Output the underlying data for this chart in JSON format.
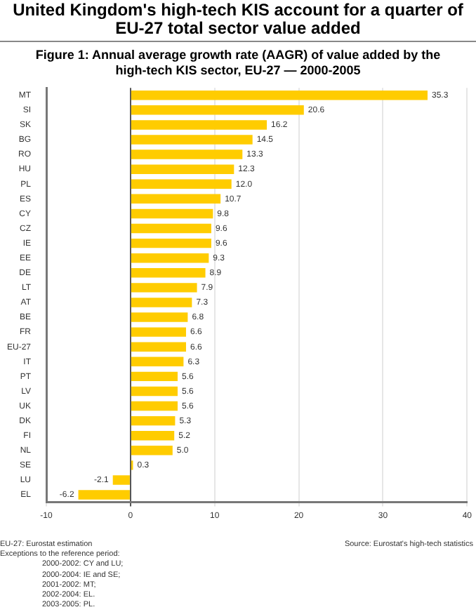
{
  "chart_data": {
    "type": "bar",
    "orientation": "horizontal",
    "title": "United Kingdom's high-tech KIS account for a quarter of EU-27 total sector value added",
    "subtitle": "Figure 1: Annual average growth rate (AAGR) of value added by the high-tech KIS sector, EU-27 — 2000-2005",
    "categories": [
      "MT",
      "SI",
      "SK",
      "BG",
      "RO",
      "HU",
      "PL",
      "ES",
      "CY",
      "CZ",
      "IE",
      "EE",
      "DE",
      "LT",
      "AT",
      "BE",
      "FR",
      "EU-27",
      "IT",
      "PT",
      "LV",
      "UK",
      "DK",
      "FI",
      "NL",
      "SE",
      "LU",
      "EL"
    ],
    "values": [
      35.3,
      20.6,
      16.2,
      14.5,
      13.3,
      12.3,
      12.0,
      10.7,
      9.8,
      9.6,
      9.6,
      9.3,
      8.9,
      7.9,
      7.3,
      6.8,
      6.6,
      6.6,
      6.3,
      5.6,
      5.6,
      5.6,
      5.3,
      5.2,
      5.0,
      0.3,
      -2.1,
      -6.2
    ],
    "value_labels": [
      "35.3",
      "20.6",
      "16.2",
      "14.5",
      "13.3",
      "12.3",
      "12.0",
      "10.7",
      "9.8",
      "9.6",
      "9.6",
      "9.3",
      "8.9",
      "7.9",
      "7.3",
      "6.8",
      "6.6",
      "6.6",
      "6.3",
      "5.6",
      "5.6",
      "5.6",
      "5.3",
      "5.2",
      "5.0",
      "0.3",
      "-2.1",
      "-6.2"
    ],
    "color": "#ffcc00",
    "xlim": [
      -10,
      40
    ],
    "xticks": [
      -10,
      0,
      10,
      20,
      30,
      40
    ],
    "grid": "x",
    "legend": false,
    "annotations": [
      "EU-27: Eurostat estimation",
      "Exceptions to the reference period:",
      "2000-2002: CY and LU;",
      "2000-2004: IE and SE;",
      "2001-2002: MT;",
      "2002-2004: EL.",
      "2003-2005: PL.",
      "Source: Eurostat's high-tech statistics"
    ]
  }
}
